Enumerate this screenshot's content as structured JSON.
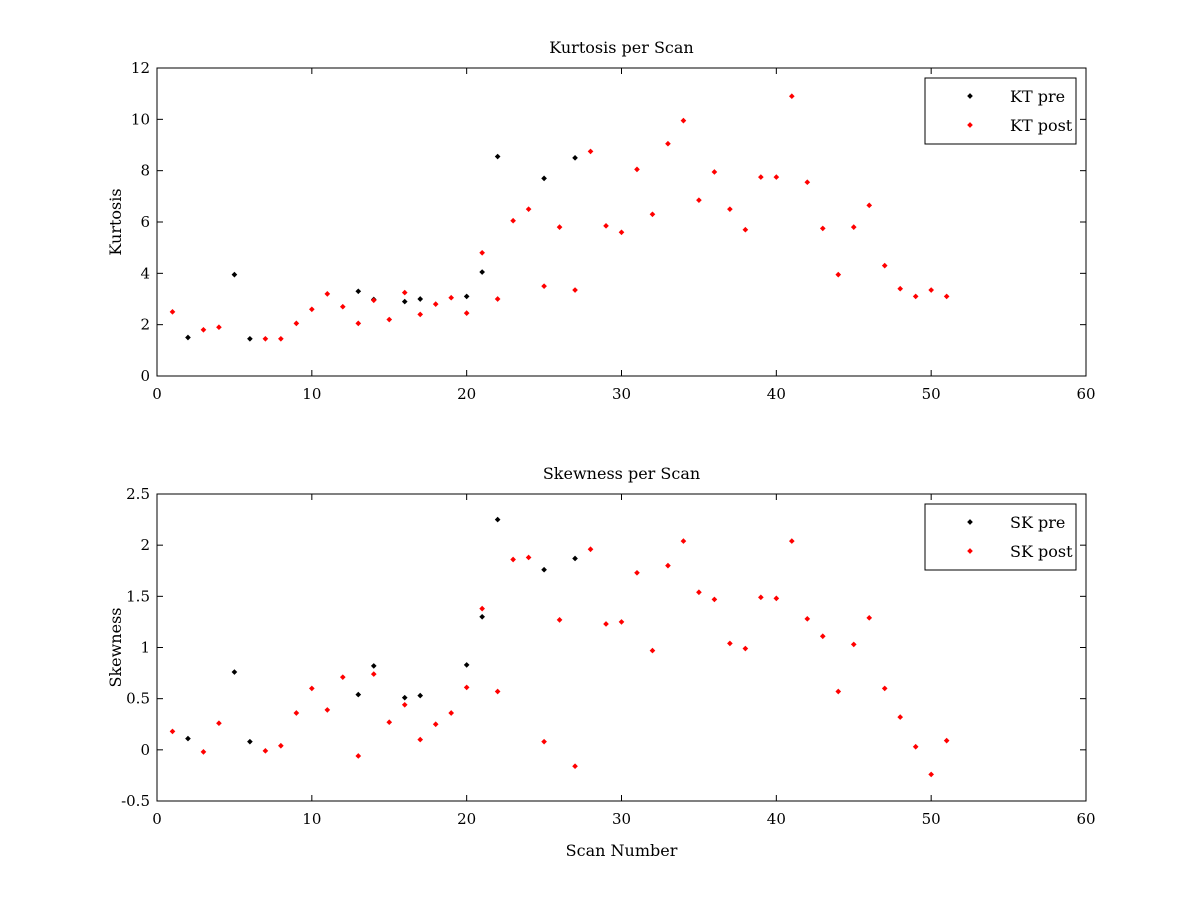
{
  "chart_data": [
    {
      "type": "scatter",
      "title": "Kurtosis per Scan",
      "xlabel": "",
      "ylabel": "Kurtosis",
      "xlim": [
        0,
        60
      ],
      "ylim": [
        0,
        12
      ],
      "xticks": [
        "0",
        "10",
        "20",
        "30",
        "40",
        "50",
        "60"
      ],
      "yticks": [
        "0",
        "2",
        "4",
        "6",
        "8",
        "10",
        "12"
      ],
      "grid": false,
      "legend_position": "top-right",
      "series": [
        {
          "name": "KT pre",
          "color": "#000000",
          "x": [
            2,
            5,
            6,
            13,
            14,
            16,
            17,
            20,
            21,
            22,
            25,
            27
          ],
          "y": [
            1.5,
            3.95,
            1.45,
            3.3,
            2.98,
            2.9,
            3.0,
            3.1,
            4.05,
            8.55,
            7.7,
            8.5
          ]
        },
        {
          "name": "KT post",
          "color": "#ff0000",
          "x": [
            1,
            3,
            4,
            7,
            8,
            9,
            10,
            11,
            12,
            13,
            14,
            15,
            16,
            17,
            18,
            19,
            20,
            21,
            22,
            23,
            24,
            25,
            26,
            27,
            28,
            29,
            30,
            31,
            32,
            33,
            34,
            35,
            36,
            37,
            38,
            39,
            40,
            41,
            42,
            43,
            44,
            45,
            46,
            47,
            48,
            49,
            50,
            51
          ],
          "y": [
            2.5,
            1.8,
            1.9,
            1.45,
            1.45,
            2.05,
            2.6,
            3.2,
            2.7,
            2.05,
            2.95,
            2.2,
            3.25,
            2.4,
            2.8,
            3.05,
            2.45,
            4.8,
            3.0,
            6.05,
            6.5,
            3.5,
            5.8,
            3.35,
            8.75,
            5.85,
            5.6,
            8.05,
            6.3,
            9.05,
            9.95,
            6.85,
            7.95,
            6.5,
            5.7,
            7.75,
            7.75,
            10.9,
            7.55,
            5.75,
            3.95,
            5.8,
            6.65,
            4.3,
            3.4,
            3.1,
            3.35,
            3.1
          ]
        }
      ]
    },
    {
      "type": "scatter",
      "title": "Skewness per Scan",
      "xlabel": "Scan Number",
      "ylabel": "Skewness",
      "xlim": [
        0,
        60
      ],
      "ylim": [
        -0.5,
        2.5
      ],
      "xticks": [
        "0",
        "10",
        "20",
        "30",
        "40",
        "50",
        "60"
      ],
      "yticks": [
        "-0.5",
        "0",
        "0.5",
        "1",
        "1.5",
        "2",
        "2.5"
      ],
      "grid": false,
      "legend_position": "top-right",
      "series": [
        {
          "name": "SK pre",
          "color": "#000000",
          "x": [
            2,
            5,
            6,
            13,
            14,
            16,
            17,
            20,
            21,
            22,
            25,
            27
          ],
          "y": [
            0.11,
            0.76,
            0.08,
            0.54,
            0.82,
            0.51,
            0.53,
            0.83,
            1.3,
            2.25,
            1.76,
            1.87
          ]
        },
        {
          "name": "SK post",
          "color": "#ff0000",
          "x": [
            1,
            3,
            4,
            7,
            8,
            9,
            10,
            11,
            12,
            13,
            14,
            15,
            16,
            17,
            18,
            19,
            20,
            21,
            22,
            23,
            24,
            25,
            26,
            27,
            28,
            29,
            30,
            31,
            32,
            33,
            34,
            35,
            36,
            37,
            38,
            39,
            40,
            41,
            42,
            43,
            44,
            45,
            46,
            47,
            48,
            49,
            50,
            51
          ],
          "y": [
            0.18,
            -0.02,
            0.26,
            -0.01,
            0.04,
            0.36,
            0.6,
            0.39,
            0.71,
            -0.06,
            0.74,
            0.27,
            0.44,
            0.1,
            0.25,
            0.36,
            0.61,
            1.38,
            0.57,
            1.86,
            1.88,
            0.08,
            1.27,
            -0.16,
            1.96,
            1.23,
            1.25,
            1.73,
            0.97,
            1.8,
            2.04,
            1.54,
            1.47,
            1.04,
            0.99,
            1.49,
            1.48,
            2.04,
            1.28,
            1.11,
            0.57,
            1.03,
            1.29,
            0.6,
            0.32,
            0.03,
            -0.24,
            0.09
          ]
        }
      ]
    }
  ]
}
